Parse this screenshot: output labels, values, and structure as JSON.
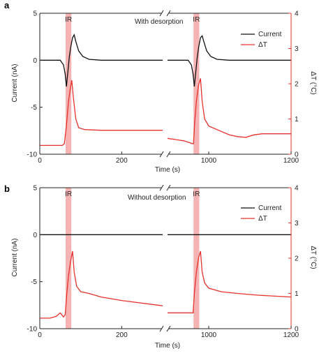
{
  "chart_data": [
    {
      "type": "line",
      "panel_label": "a",
      "annotation": "With desorption",
      "ir_label": "IR",
      "xlabel": "Time (s)",
      "ylabel_left": "Current (nA)",
      "ylabel_right": "ΔT (°C)",
      "xlim": [
        0,
        1200
      ],
      "ylim_left": [
        -10,
        5
      ],
      "ylim_right": [
        0,
        4
      ],
      "x_ticks": [
        "0",
        "200",
        "1000",
        "1200"
      ],
      "y_left_ticks": [
        "-10",
        "-5",
        "0",
        "5"
      ],
      "y_right_ticks": [
        "0",
        "1",
        "2",
        "3",
        "4"
      ],
      "legend": [
        "Current",
        "ΔT"
      ],
      "ir_windows": [
        [
          60,
          80
        ],
        [
          1080,
          1100
        ]
      ],
      "series": [
        {
          "name": "Current",
          "color": "#111111",
          "axis": "left",
          "segments": [
            [
              [
                0,
                0
              ],
              [
                50,
                0
              ],
              [
                58,
                -0.5
              ],
              [
                62,
                -1.5
              ],
              [
                65,
                -2.8
              ],
              [
                68,
                -1.5
              ],
              [
                72,
                0.3
              ],
              [
                76,
                1.5
              ],
              [
                80,
                2.4
              ],
              [
                84,
                2.7
              ],
              [
                88,
                2
              ],
              [
                95,
                1
              ],
              [
                105,
                0.4
              ],
              [
                120,
                0.1
              ],
              [
                150,
                0
              ],
              [
                300,
                0
              ]
            ],
            [
              [
                0,
                0
              ],
              [
                50,
                0
              ],
              [
                58,
                -0.5
              ],
              [
                62,
                -1.5
              ],
              [
                65,
                -2.8
              ],
              [
                68,
                -1.5
              ],
              [
                72,
                0.3
              ],
              [
                76,
                1.5
              ],
              [
                80,
                2.4
              ],
              [
                84,
                2.6
              ],
              [
                88,
                2
              ],
              [
                95,
                1
              ],
              [
                105,
                0.4
              ],
              [
                120,
                0.1
              ],
              [
                150,
                0
              ],
              [
                300,
                0
              ]
            ]
          ]
        },
        {
          "name": "ΔT",
          "color": "#e8312a",
          "axis": "right",
          "segments": [
            [
              [
                0,
                0.25
              ],
              [
                55,
                0.25
              ],
              [
                60,
                0.3
              ],
              [
                65,
                0.8
              ],
              [
                70,
                1.5
              ],
              [
                75,
                1.9
              ],
              [
                78,
                2.1
              ],
              [
                82,
                1.6
              ],
              [
                88,
                1.0
              ],
              [
                95,
                0.75
              ],
              [
                110,
                0.7
              ],
              [
                150,
                0.68
              ],
              [
                200,
                0.68
              ],
              [
                300,
                0.68
              ]
            ],
            [
              [
                0,
                0.45
              ],
              [
                40,
                0.38
              ],
              [
                60,
                0.3
              ],
              [
                63,
                0.3
              ],
              [
                66,
                0.9
              ],
              [
                70,
                1.5
              ],
              [
                75,
                1.95
              ],
              [
                80,
                2.15
              ],
              [
                84,
                1.5
              ],
              [
                90,
                1.0
              ],
              [
                100,
                0.8
              ],
              [
                120,
                0.7
              ],
              [
                150,
                0.55
              ],
              [
                170,
                0.5
              ],
              [
                190,
                0.48
              ],
              [
                210,
                0.55
              ],
              [
                230,
                0.58
              ],
              [
                260,
                0.58
              ],
              [
                300,
                0.58
              ]
            ]
          ]
        }
      ]
    },
    {
      "type": "line",
      "panel_label": "b",
      "annotation": "Without desorption",
      "ir_label": "IR",
      "xlabel": "Time (s)",
      "ylabel_left": "Current (nA)",
      "ylabel_right": "ΔT (°C)",
      "xlim": [
        0,
        1200
      ],
      "ylim_left": [
        -10,
        5
      ],
      "ylim_right": [
        0,
        4
      ],
      "x_ticks": [
        "0",
        "200",
        "1000",
        "1200"
      ],
      "y_left_ticks": [
        "-10",
        "-5",
        "0",
        "5"
      ],
      "y_right_ticks": [
        "0",
        "1",
        "2",
        "3",
        "4"
      ],
      "legend": [
        "Current",
        "ΔT"
      ],
      "ir_windows": [
        [
          60,
          80
        ],
        [
          1080,
          1100
        ]
      ],
      "series": [
        {
          "name": "Current",
          "color": "#111111",
          "axis": "left",
          "segments": [
            [
              [
                0,
                0
              ],
              [
                300,
                0
              ]
            ],
            [
              [
                0,
                0
              ],
              [
                300,
                0
              ]
            ]
          ]
        },
        {
          "name": "ΔT",
          "color": "#e8312a",
          "axis": "right",
          "segments": [
            [
              [
                0,
                0.3
              ],
              [
                25,
                0.3
              ],
              [
                40,
                0.35
              ],
              [
                50,
                0.45
              ],
              [
                58,
                0.33
              ],
              [
                62,
                0.4
              ],
              [
                66,
                1.0
              ],
              [
                70,
                1.5
              ],
              [
                75,
                1.9
              ],
              [
                80,
                2.2
              ],
              [
                84,
                1.6
              ],
              [
                90,
                1.2
              ],
              [
                100,
                1.05
              ],
              [
                120,
                1.0
              ],
              [
                150,
                0.9
              ],
              [
                200,
                0.8
              ],
              [
                300,
                0.65
              ]
            ],
            [
              [
                0,
                0.45
              ],
              [
                60,
                0.45
              ],
              [
                62,
                0.45
              ],
              [
                65,
                1.0
              ],
              [
                70,
                1.6
              ],
              [
                75,
                2.0
              ],
              [
                80,
                2.2
              ],
              [
                84,
                1.6
              ],
              [
                90,
                1.3
              ],
              [
                100,
                1.15
              ],
              [
                130,
                1.05
              ],
              [
                170,
                1.0
              ],
              [
                220,
                0.95
              ],
              [
                300,
                0.9
              ]
            ]
          ]
        }
      ]
    }
  ]
}
